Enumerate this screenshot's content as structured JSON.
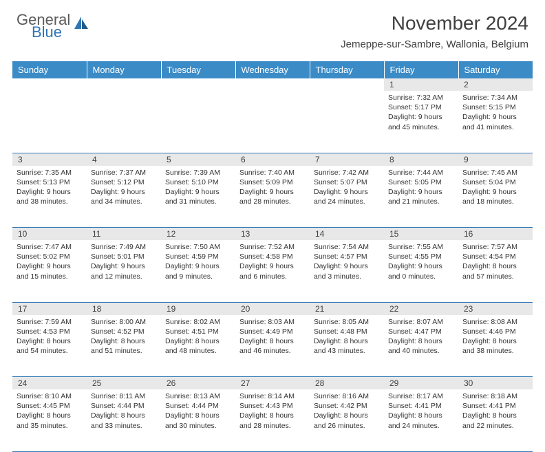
{
  "brand": {
    "line1": "General",
    "line2": "Blue"
  },
  "title": "November 2024",
  "location": "Jemeppe-sur-Sambre, Wallonia, Belgium",
  "colors": {
    "header_bg": "#3b8bc6",
    "header_text": "#ffffff",
    "daynum_bg": "#e8e8e8",
    "border": "#2e75b6",
    "brand_gray": "#5a5a5a",
    "brand_blue": "#2e75b6",
    "body_text": "#333333"
  },
  "day_headers": [
    "Sunday",
    "Monday",
    "Tuesday",
    "Wednesday",
    "Thursday",
    "Friday",
    "Saturday"
  ],
  "weeks": [
    [
      {
        "n": "",
        "sr": "",
        "ss": "",
        "dl": ""
      },
      {
        "n": "",
        "sr": "",
        "ss": "",
        "dl": ""
      },
      {
        "n": "",
        "sr": "",
        "ss": "",
        "dl": ""
      },
      {
        "n": "",
        "sr": "",
        "ss": "",
        "dl": ""
      },
      {
        "n": "",
        "sr": "",
        "ss": "",
        "dl": ""
      },
      {
        "n": "1",
        "sr": "Sunrise: 7:32 AM",
        "ss": "Sunset: 5:17 PM",
        "dl": "Daylight: 9 hours and 45 minutes."
      },
      {
        "n": "2",
        "sr": "Sunrise: 7:34 AM",
        "ss": "Sunset: 5:15 PM",
        "dl": "Daylight: 9 hours and 41 minutes."
      }
    ],
    [
      {
        "n": "3",
        "sr": "Sunrise: 7:35 AM",
        "ss": "Sunset: 5:13 PM",
        "dl": "Daylight: 9 hours and 38 minutes."
      },
      {
        "n": "4",
        "sr": "Sunrise: 7:37 AM",
        "ss": "Sunset: 5:12 PM",
        "dl": "Daylight: 9 hours and 34 minutes."
      },
      {
        "n": "5",
        "sr": "Sunrise: 7:39 AM",
        "ss": "Sunset: 5:10 PM",
        "dl": "Daylight: 9 hours and 31 minutes."
      },
      {
        "n": "6",
        "sr": "Sunrise: 7:40 AM",
        "ss": "Sunset: 5:09 PM",
        "dl": "Daylight: 9 hours and 28 minutes."
      },
      {
        "n": "7",
        "sr": "Sunrise: 7:42 AM",
        "ss": "Sunset: 5:07 PM",
        "dl": "Daylight: 9 hours and 24 minutes."
      },
      {
        "n": "8",
        "sr": "Sunrise: 7:44 AM",
        "ss": "Sunset: 5:05 PM",
        "dl": "Daylight: 9 hours and 21 minutes."
      },
      {
        "n": "9",
        "sr": "Sunrise: 7:45 AM",
        "ss": "Sunset: 5:04 PM",
        "dl": "Daylight: 9 hours and 18 minutes."
      }
    ],
    [
      {
        "n": "10",
        "sr": "Sunrise: 7:47 AM",
        "ss": "Sunset: 5:02 PM",
        "dl": "Daylight: 9 hours and 15 minutes."
      },
      {
        "n": "11",
        "sr": "Sunrise: 7:49 AM",
        "ss": "Sunset: 5:01 PM",
        "dl": "Daylight: 9 hours and 12 minutes."
      },
      {
        "n": "12",
        "sr": "Sunrise: 7:50 AM",
        "ss": "Sunset: 4:59 PM",
        "dl": "Daylight: 9 hours and 9 minutes."
      },
      {
        "n": "13",
        "sr": "Sunrise: 7:52 AM",
        "ss": "Sunset: 4:58 PM",
        "dl": "Daylight: 9 hours and 6 minutes."
      },
      {
        "n": "14",
        "sr": "Sunrise: 7:54 AM",
        "ss": "Sunset: 4:57 PM",
        "dl": "Daylight: 9 hours and 3 minutes."
      },
      {
        "n": "15",
        "sr": "Sunrise: 7:55 AM",
        "ss": "Sunset: 4:55 PM",
        "dl": "Daylight: 9 hours and 0 minutes."
      },
      {
        "n": "16",
        "sr": "Sunrise: 7:57 AM",
        "ss": "Sunset: 4:54 PM",
        "dl": "Daylight: 8 hours and 57 minutes."
      }
    ],
    [
      {
        "n": "17",
        "sr": "Sunrise: 7:59 AM",
        "ss": "Sunset: 4:53 PM",
        "dl": "Daylight: 8 hours and 54 minutes."
      },
      {
        "n": "18",
        "sr": "Sunrise: 8:00 AM",
        "ss": "Sunset: 4:52 PM",
        "dl": "Daylight: 8 hours and 51 minutes."
      },
      {
        "n": "19",
        "sr": "Sunrise: 8:02 AM",
        "ss": "Sunset: 4:51 PM",
        "dl": "Daylight: 8 hours and 48 minutes."
      },
      {
        "n": "20",
        "sr": "Sunrise: 8:03 AM",
        "ss": "Sunset: 4:49 PM",
        "dl": "Daylight: 8 hours and 46 minutes."
      },
      {
        "n": "21",
        "sr": "Sunrise: 8:05 AM",
        "ss": "Sunset: 4:48 PM",
        "dl": "Daylight: 8 hours and 43 minutes."
      },
      {
        "n": "22",
        "sr": "Sunrise: 8:07 AM",
        "ss": "Sunset: 4:47 PM",
        "dl": "Daylight: 8 hours and 40 minutes."
      },
      {
        "n": "23",
        "sr": "Sunrise: 8:08 AM",
        "ss": "Sunset: 4:46 PM",
        "dl": "Daylight: 8 hours and 38 minutes."
      }
    ],
    [
      {
        "n": "24",
        "sr": "Sunrise: 8:10 AM",
        "ss": "Sunset: 4:45 PM",
        "dl": "Daylight: 8 hours and 35 minutes."
      },
      {
        "n": "25",
        "sr": "Sunrise: 8:11 AM",
        "ss": "Sunset: 4:44 PM",
        "dl": "Daylight: 8 hours and 33 minutes."
      },
      {
        "n": "26",
        "sr": "Sunrise: 8:13 AM",
        "ss": "Sunset: 4:44 PM",
        "dl": "Daylight: 8 hours and 30 minutes."
      },
      {
        "n": "27",
        "sr": "Sunrise: 8:14 AM",
        "ss": "Sunset: 4:43 PM",
        "dl": "Daylight: 8 hours and 28 minutes."
      },
      {
        "n": "28",
        "sr": "Sunrise: 8:16 AM",
        "ss": "Sunset: 4:42 PM",
        "dl": "Daylight: 8 hours and 26 minutes."
      },
      {
        "n": "29",
        "sr": "Sunrise: 8:17 AM",
        "ss": "Sunset: 4:41 PM",
        "dl": "Daylight: 8 hours and 24 minutes."
      },
      {
        "n": "30",
        "sr": "Sunrise: 8:18 AM",
        "ss": "Sunset: 4:41 PM",
        "dl": "Daylight: 8 hours and 22 minutes."
      }
    ]
  ]
}
